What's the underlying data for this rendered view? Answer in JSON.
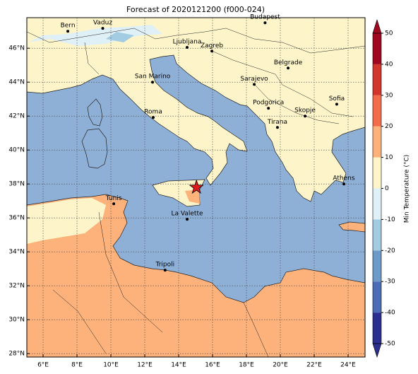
{
  "map": {
    "title": "Forecast of 2020121200 (f000-024)",
    "lonlim": [
      5.04,
      25
    ],
    "latlim": [
      27.8,
      47.8
    ],
    "lonticks": [
      {
        "value": 6,
        "label": "6°E"
      },
      {
        "value": 8,
        "label": "8°E"
      },
      {
        "value": 10,
        "label": "10°E"
      },
      {
        "value": 12,
        "label": "12°E"
      },
      {
        "value": 14,
        "label": "14°E"
      },
      {
        "value": 16,
        "label": "16°E"
      },
      {
        "value": 18,
        "label": "18°E"
      },
      {
        "value": 20,
        "label": "20°E"
      },
      {
        "value": 22,
        "label": "22°E"
      },
      {
        "value": 24,
        "label": "24°E"
      }
    ],
    "latticks": [
      {
        "value": 28,
        "label": "28°N"
      },
      {
        "value": 30,
        "label": "30°N"
      },
      {
        "value": 32,
        "label": "32°N"
      },
      {
        "value": 34,
        "label": "34°N"
      },
      {
        "value": 36,
        "label": "36°N"
      },
      {
        "value": 38,
        "label": "38°N"
      },
      {
        "value": 40,
        "label": "40°N"
      },
      {
        "value": 42,
        "label": "42°N"
      },
      {
        "value": 44,
        "label": "44°N"
      },
      {
        "value": 46,
        "label": "46°N"
      }
    ],
    "grid": true,
    "cities": [
      {
        "name": "Bern",
        "lon": 7.46,
        "lat": 47.0
      },
      {
        "name": "Vaduz",
        "lon": 9.52,
        "lat": 47.17
      },
      {
        "name": "Budapest",
        "lon": 19.1,
        "lat": 47.5
      },
      {
        "name": "Ljubljana",
        "lon": 14.5,
        "lat": 46.05
      },
      {
        "name": "Zagreb",
        "lon": 15.96,
        "lat": 45.83
      },
      {
        "name": "Belgrade",
        "lon": 20.46,
        "lat": 44.83
      },
      {
        "name": "San Marino",
        "lon": 12.46,
        "lat": 44.0
      },
      {
        "name": "Sarajevo",
        "lon": 18.46,
        "lat": 43.87
      },
      {
        "name": "Sofia",
        "lon": 23.33,
        "lat": 42.7
      },
      {
        "name": "Roma",
        "lon": 12.5,
        "lat": 41.92
      },
      {
        "name": "Podgorica",
        "lon": 19.3,
        "lat": 42.46
      },
      {
        "name": "Skopje",
        "lon": 21.46,
        "lat": 42.0
      },
      {
        "name": "Tirana",
        "lon": 19.83,
        "lat": 41.33
      },
      {
        "name": "Athens",
        "lon": 23.75,
        "lat": 38.0
      },
      {
        "name": "Tunis",
        "lon": 10.17,
        "lat": 36.83
      },
      {
        "name": "La Valette",
        "lon": 14.5,
        "lat": 35.92
      },
      {
        "name": "Tripoli",
        "lon": 13.2,
        "lat": 32.92
      }
    ],
    "marker": {
      "lon": 15.05,
      "lat": 37.8,
      "color": "#e31a1c"
    },
    "colorbar": {
      "label": "Min Temperature (°C)",
      "lim": [
        -50,
        50
      ],
      "ticks": [
        -50,
        -40,
        -30,
        -20,
        -10,
        0,
        10,
        20,
        30,
        40,
        50
      ],
      "colors": [
        "#2b2f8f",
        "#4a6db5",
        "#6d9bc9",
        "#a3cbe2",
        "#dff0f6",
        "#fdf5c9",
        "#fdb27c",
        "#f26d4a",
        "#d2372c",
        "#a0081f"
      ]
    }
  }
}
